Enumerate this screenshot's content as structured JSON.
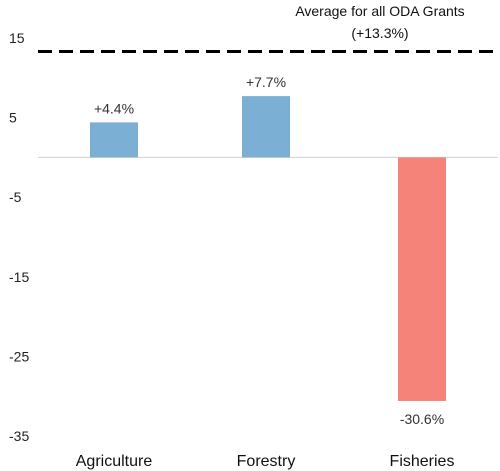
{
  "chart_data": {
    "type": "bar",
    "categories": [
      "Agriculture",
      "Forestry",
      "Fisheries"
    ],
    "values": [
      4.4,
      7.7,
      -30.6
    ],
    "data_labels": [
      "+4.4%",
      "+7.7%",
      "-30.6%"
    ],
    "bar_colors": [
      "#7bafd4",
      "#7bafd4",
      "#f58379"
    ],
    "ylim": [
      -35,
      15
    ],
    "yticks": [
      15,
      5,
      -5,
      -15,
      -25,
      -35
    ],
    "reference_line": {
      "value": 13.3,
      "label_line1": "Average for all ODA Grants",
      "label_line2": "(+13.3%)",
      "style": "dashed"
    },
    "title": "",
    "xlabel": "",
    "ylabel": "",
    "grid": false,
    "legend": "none"
  }
}
